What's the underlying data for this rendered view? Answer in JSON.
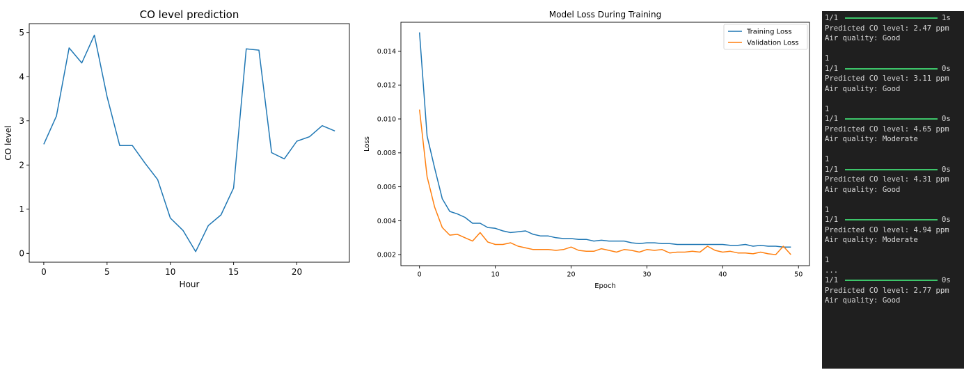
{
  "chart_data": [
    {
      "type": "line",
      "title": "CO level prediction",
      "xlabel": "Hour",
      "ylabel": "CO level",
      "xlim": [
        -1.15,
        24.15
      ],
      "ylim": [
        -0.2,
        5.2
      ],
      "xticks": [
        0,
        5,
        10,
        15,
        20
      ],
      "yticks": [
        0,
        1,
        2,
        3,
        4,
        5
      ],
      "grid": false,
      "series": [
        {
          "color": "#1f77b4",
          "x": [
            0,
            1,
            2,
            3,
            4,
            5,
            6,
            7,
            8,
            9,
            10,
            11,
            12,
            13,
            14,
            15,
            16,
            17,
            18,
            19,
            20,
            21,
            22,
            23
          ],
          "values": [
            2.47,
            3.11,
            4.65,
            4.31,
            4.94,
            3.55,
            2.44,
            2.44,
            2.04,
            1.67,
            0.8,
            0.52,
            0.04,
            0.63,
            0.87,
            1.48,
            4.63,
            4.6,
            2.28,
            2.14,
            2.54,
            2.64,
            2.89,
            2.77
          ]
        }
      ]
    },
    {
      "type": "line",
      "title": "Model Loss During Training",
      "xlabel": "Epoch",
      "ylabel": "Loss",
      "xlim": [
        -2.45,
        51.45
      ],
      "ylim": [
        0.00135,
        0.0157
      ],
      "xticks": [
        0,
        10,
        20,
        30,
        40,
        50
      ],
      "yticks": [
        0.002,
        0.004,
        0.006,
        0.008,
        0.01,
        0.012,
        0.014
      ],
      "grid": false,
      "legend": "top-right",
      "series": [
        {
          "name": "Training Loss",
          "color": "#1f77b4",
          "x": [
            0,
            1,
            2,
            3,
            4,
            5,
            6,
            7,
            8,
            9,
            10,
            11,
            12,
            13,
            14,
            15,
            16,
            17,
            18,
            19,
            20,
            21,
            22,
            23,
            24,
            25,
            26,
            27,
            28,
            29,
            30,
            31,
            32,
            33,
            34,
            35,
            36,
            37,
            38,
            39,
            40,
            41,
            42,
            43,
            44,
            45,
            46,
            47,
            48,
            49
          ],
          "values": [
            0.0151,
            0.009,
            0.0071,
            0.0053,
            0.00455,
            0.0044,
            0.0042,
            0.00385,
            0.00385,
            0.0036,
            0.00355,
            0.0034,
            0.0033,
            0.00335,
            0.0034,
            0.0032,
            0.0031,
            0.0031,
            0.003,
            0.00295,
            0.00295,
            0.0029,
            0.0029,
            0.0028,
            0.00285,
            0.0028,
            0.0028,
            0.0028,
            0.0027,
            0.00265,
            0.0027,
            0.0027,
            0.00265,
            0.00265,
            0.0026,
            0.0026,
            0.0026,
            0.0026,
            0.0026,
            0.0026,
            0.0026,
            0.00255,
            0.00255,
            0.0026,
            0.0025,
            0.00255,
            0.0025,
            0.0025,
            0.00245,
            0.00245
          ]
        },
        {
          "name": "Validation Loss",
          "color": "#ff7f0e",
          "x": [
            0,
            1,
            2,
            3,
            4,
            5,
            6,
            7,
            8,
            9,
            10,
            11,
            12,
            13,
            14,
            15,
            16,
            17,
            18,
            19,
            20,
            21,
            22,
            23,
            24,
            25,
            26,
            27,
            28,
            29,
            30,
            31,
            32,
            33,
            34,
            35,
            36,
            37,
            38,
            39,
            40,
            41,
            42,
            43,
            44,
            45,
            46,
            47,
            48,
            49
          ],
          "values": [
            0.01055,
            0.0066,
            0.0048,
            0.0036,
            0.00315,
            0.0032,
            0.003,
            0.0028,
            0.0033,
            0.00275,
            0.0026,
            0.0026,
            0.0027,
            0.0025,
            0.0024,
            0.0023,
            0.0023,
            0.0023,
            0.00225,
            0.0023,
            0.00245,
            0.00225,
            0.0022,
            0.0022,
            0.00235,
            0.00225,
            0.00215,
            0.0023,
            0.00225,
            0.00215,
            0.0023,
            0.00225,
            0.0023,
            0.0021,
            0.00215,
            0.00215,
            0.0022,
            0.00215,
            0.0025,
            0.00225,
            0.00215,
            0.0022,
            0.0021,
            0.0021,
            0.00205,
            0.00215,
            0.00205,
            0.002,
            0.0025,
            0.002
          ]
        }
      ]
    }
  ],
  "console": {
    "blocks": [
      {
        "pre": [],
        "progress": {
          "label": "1/1",
          "time": "1s"
        },
        "post": [
          "Predicted CO level: 2.47 ppm",
          "Air quality: Good"
        ]
      },
      {
        "pre": [
          "1"
        ],
        "progress": {
          "label": "1/1",
          "time": "0s"
        },
        "post": [
          "Predicted CO level: 3.11 ppm",
          "Air quality: Good"
        ]
      },
      {
        "pre": [
          "1"
        ],
        "progress": {
          "label": "1/1",
          "time": "0s"
        },
        "post": [
          "Predicted CO level: 4.65 ppm",
          "Air quality: Moderate"
        ]
      },
      {
        "pre": [
          "1"
        ],
        "progress": {
          "label": "1/1",
          "time": "0s"
        },
        "post": [
          "Predicted CO level: 4.31 ppm",
          "Air quality: Good"
        ]
      },
      {
        "pre": [
          "1"
        ],
        "progress": {
          "label": "1/1",
          "time": "0s"
        },
        "post": [
          "Predicted CO level: 4.94 ppm",
          "Air quality: Moderate"
        ]
      },
      {
        "pre": [
          "1",
          "..."
        ],
        "progress": {
          "label": "1/1",
          "time": "0s"
        },
        "post": [
          "Predicted CO level: 2.77 ppm",
          "Air quality: Good"
        ]
      }
    ]
  }
}
